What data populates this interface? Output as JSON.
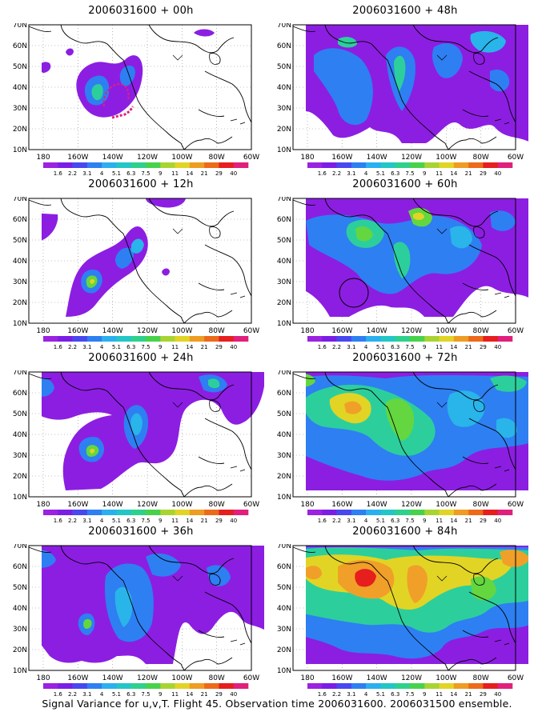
{
  "panels": [
    {
      "title": "2006031600 + 00h"
    },
    {
      "title": "2006031600 + 48h"
    },
    {
      "title": "2006031600 + 12h"
    },
    {
      "title": "2006031600 + 60h"
    },
    {
      "title": "2006031600 + 24h"
    },
    {
      "title": "2006031600 + 72h"
    },
    {
      "title": "2006031600 + 36h"
    },
    {
      "title": "2006031600 + 84h"
    }
  ],
  "map": {
    "lat_labels": [
      "70N",
      "60N",
      "50N",
      "40N",
      "30N",
      "20N",
      "10N"
    ],
    "lon_labels": [
      "180",
      "160W",
      "140W",
      "120W",
      "100W",
      "80W",
      "60W"
    ]
  },
  "colorbar": {
    "labels": [
      "1.6",
      "2.2",
      "3.1",
      "4",
      "5.1",
      "6.3",
      "7.5",
      "9",
      "11",
      "14",
      "21",
      "29",
      "40"
    ],
    "colors": [
      "#9b22e0",
      "#7a1ee6",
      "#4848f0",
      "#2e7ff2",
      "#2ab0ee",
      "#22c6c6",
      "#2ed18c",
      "#48d24c",
      "#a8d432",
      "#e2d424",
      "#ee9c22",
      "#ec6a1a",
      "#e61e1e",
      "#e0207c"
    ]
  },
  "field_colors": {
    "l1": "#8c1ee2",
    "l2": "#5b3cf0",
    "l3": "#2e7ff2",
    "l4": "#29b4ea",
    "l5": "#2ccf9c",
    "l6": "#64d640",
    "l7": "#e2d424",
    "l8": "#f0a028",
    "l9": "#e61e1e"
  },
  "footer": "Signal Variance for u,v,T. Flight 45. Observation time 2006031600. 2006031500 ensemble."
}
